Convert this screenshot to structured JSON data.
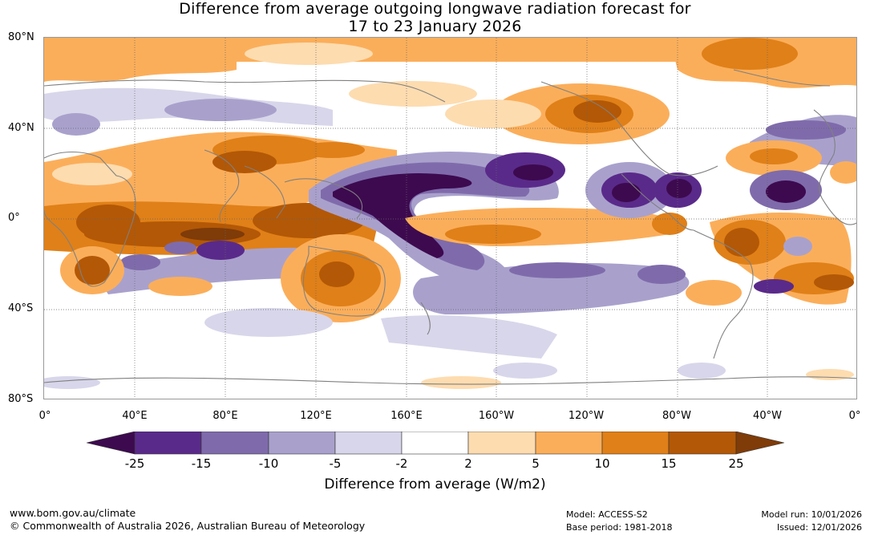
{
  "title": {
    "line1": "Difference from average outgoing longwave radiation forecast for",
    "line2": "17 to 23 January 2026"
  },
  "lat_labels": [
    "80°N",
    "40°N",
    "0°",
    "40°S",
    "80°S"
  ],
  "lon_labels": [
    "0°",
    "40°E",
    "80°E",
    "120°E",
    "160°E",
    "160°W",
    "120°W",
    "80°W",
    "40°W",
    "0°"
  ],
  "colorbar": {
    "ticks": [
      "-25",
      "-15",
      "-10",
      "-5",
      "-2",
      "2",
      "5",
      "10",
      "15",
      "25"
    ],
    "colors": [
      "#3d0a4f",
      "#5a2a8a",
      "#7f6bab",
      "#a9a1cc",
      "#d8d6ea",
      "#ffffff",
      "#fddcb0",
      "#fbae5a",
      "#e08018",
      "#b35806",
      "#7f3b08"
    ],
    "units_label": "Difference from average (W/m2)"
  },
  "footer": {
    "website": "www.bom.gov.au/climate",
    "copyright": "© Commonwealth of Australia 2026, Australian Bureau of Meteorology",
    "model": "Model: ACCESS-S2",
    "base_period": "Base period: 1981-2018",
    "model_run": "Model run: 10/01/2026",
    "issued": "Issued: 12/01/2026"
  }
}
